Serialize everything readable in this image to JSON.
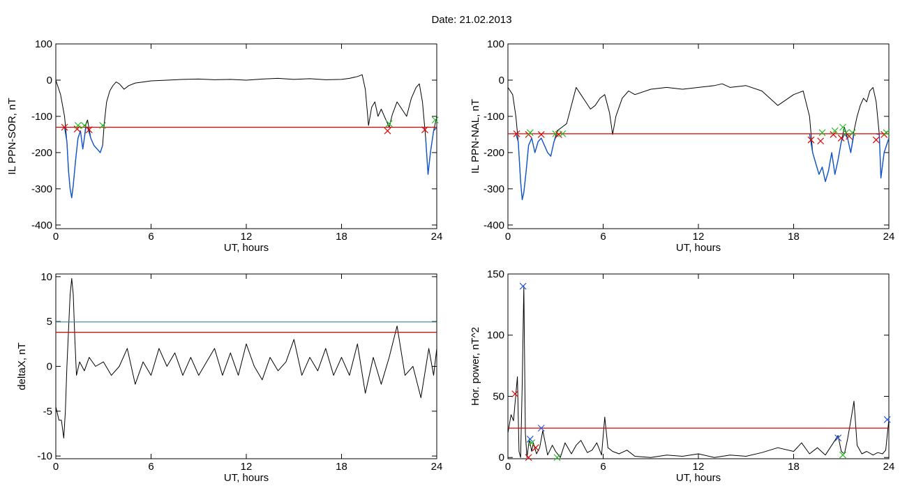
{
  "figure": {
    "title": "Date:  21.02.2013",
    "xlabel": "UT, hours",
    "x_ticks": [
      0,
      6,
      12,
      18,
      24
    ]
  },
  "colors": {
    "signal": "#000000",
    "blue_segments": "#1155cc",
    "threshold_red": "#dd0000",
    "threshold_teal": "#2a8a9a",
    "marker_red": "#dd0000",
    "marker_green": "#22bb22",
    "marker_blue": "#2255dd"
  },
  "chart_data": [
    {
      "id": "ppn-sor",
      "type": "line",
      "ylabel": "IL PPN-SOR, nT",
      "xlabel": "UT, hours",
      "xlim": [
        0,
        24
      ],
      "ylim": [
        -410,
        100
      ],
      "y_ticks": [
        100,
        0,
        -100,
        -200,
        -300,
        -400
      ],
      "y_tick_labels": [
        "100",
        "0",
        "-100",
        "-200",
        "-300",
        "-400"
      ],
      "thresholds": [
        {
          "y": -130,
          "color": "#dd0000"
        }
      ],
      "series": [
        {
          "color": "#000000",
          "x": [
            0,
            0.3,
            0.55,
            0.7,
            0.8,
            0.9,
            1.0,
            1.1,
            1.25,
            1.4,
            1.55,
            1.7,
            1.8,
            1.9,
            2.0,
            2.2,
            2.4,
            2.6,
            2.8,
            2.95,
            3.05,
            3.2,
            3.4,
            3.6,
            3.8,
            4.0,
            4.3,
            4.6,
            5.0,
            5.5,
            6.0,
            7,
            8,
            9,
            10,
            11,
            12,
            13,
            14,
            15,
            16,
            17,
            18,
            18.5,
            19.0,
            19.3,
            19.5,
            19.7,
            19.9,
            20.1,
            20.3,
            20.5,
            20.8,
            21.0,
            21.2,
            21.5,
            21.8,
            22.1,
            22.4,
            22.7,
            22.9,
            23.1,
            23.3,
            23.45,
            23.6,
            23.8,
            24
          ],
          "y": [
            0,
            -40,
            -100,
            -170,
            -250,
            -300,
            -325,
            -290,
            -220,
            -160,
            -140,
            -190,
            -160,
            -120,
            -110,
            -160,
            -180,
            -190,
            -200,
            -180,
            -120,
            -60,
            -30,
            -15,
            -5,
            -10,
            -25,
            -15,
            -8,
            -5,
            -2,
            0,
            2,
            3,
            1,
            2,
            0,
            3,
            5,
            2,
            4,
            1,
            2,
            5,
            10,
            15,
            -25,
            -125,
            -75,
            -60,
            -100,
            -80,
            -110,
            -130,
            -95,
            -60,
            -80,
            -100,
            -50,
            -20,
            -10,
            -60,
            -160,
            -260,
            -200,
            -140,
            -100
          ]
        },
        {
          "color": "#1155cc",
          "x": [
            0.55,
            0.7,
            0.8,
            0.9,
            1.0,
            1.1,
            1.25,
            1.4,
            1.55,
            1.7,
            1.8,
            1.9,
            2.0,
            2.2,
            2.4,
            2.6,
            2.8,
            2.95
          ],
          "y": [
            -130,
            -170,
            -250,
            -300,
            -325,
            -290,
            -220,
            -160,
            -140,
            -190,
            -160,
            -130,
            -130,
            -160,
            -180,
            -190,
            -200,
            -180
          ]
        },
        {
          "color": "#1155cc",
          "x": [
            23.3,
            23.45,
            23.6,
            23.8,
            24
          ],
          "y": [
            -160,
            -260,
            -200,
            -140,
            -130
          ]
        }
      ],
      "markers": [
        {
          "x": 0.55,
          "y": -130,
          "symbol": "x",
          "color": "#dd0000"
        },
        {
          "x": 1.35,
          "y": -135,
          "symbol": "x",
          "color": "#dd0000"
        },
        {
          "x": 1.4,
          "y": -125,
          "symbol": "x",
          "color": "#22bb22"
        },
        {
          "x": 1.8,
          "y": -125,
          "symbol": "x",
          "color": "#22bb22"
        },
        {
          "x": 2.1,
          "y": -137,
          "symbol": "x",
          "color": "#dd0000"
        },
        {
          "x": 2.95,
          "y": -125,
          "symbol": "x",
          "color": "#22bb22"
        },
        {
          "x": 20.9,
          "y": -140,
          "symbol": "x",
          "color": "#dd0000"
        },
        {
          "x": 21.0,
          "y": -120,
          "symbol": "x",
          "color": "#22bb22"
        },
        {
          "x": 23.25,
          "y": -137,
          "symbol": "x",
          "color": "#dd0000"
        },
        {
          "x": 23.9,
          "y": -110,
          "symbol": "x",
          "color": "#22bb22"
        }
      ]
    },
    {
      "id": "ppn-nal",
      "type": "line",
      "ylabel": "IL PPN-NAL, nT",
      "xlabel": "UT, hours",
      "xlim": [
        0,
        24
      ],
      "ylim": [
        -410,
        100
      ],
      "y_ticks": [
        100,
        0,
        -100,
        -200,
        -300,
        -400
      ],
      "y_tick_labels": [
        "100",
        "0",
        "-100",
        "-200",
        "-300",
        "-400"
      ],
      "thresholds": [
        {
          "y": -148,
          "color": "#dd0000"
        }
      ],
      "series": [
        {
          "color": "#000000",
          "x": [
            0,
            0.3,
            0.5,
            0.65,
            0.8,
            0.9,
            1.0,
            1.15,
            1.3,
            1.5,
            1.7,
            1.9,
            2.1,
            2.3,
            2.5,
            2.7,
            2.9,
            3.1,
            3.4,
            3.7,
            4.0,
            4.3,
            4.6,
            4.9,
            5.2,
            5.5,
            5.8,
            6.1,
            6.4,
            6.6,
            6.8,
            7.2,
            7.6,
            8,
            9,
            10,
            11,
            12,
            13,
            13.5,
            14,
            15,
            16,
            17,
            18,
            18.6,
            19.0,
            19.2,
            19.4,
            19.6,
            19.8,
            20.0,
            20.2,
            20.4,
            20.6,
            20.8,
            21.0,
            21.2,
            21.4,
            21.6,
            21.8,
            22.0,
            22.2,
            22.4,
            22.6,
            22.8,
            23.0,
            23.2,
            23.4,
            23.5,
            23.7,
            24
          ],
          "y": [
            -20,
            -40,
            -100,
            -170,
            -280,
            -330,
            -310,
            -250,
            -180,
            -160,
            -200,
            -170,
            -160,
            -180,
            -200,
            -210,
            -170,
            -140,
            -130,
            -120,
            -70,
            -20,
            -40,
            -60,
            -80,
            -70,
            -50,
            -40,
            -90,
            -150,
            -100,
            -50,
            -30,
            -40,
            -25,
            -20,
            -25,
            -20,
            -15,
            -10,
            -20,
            -15,
            -30,
            -70,
            -40,
            -30,
            -100,
            -200,
            -230,
            -260,
            -240,
            -280,
            -250,
            -200,
            -260,
            -220,
            -170,
            -130,
            -160,
            -200,
            -140,
            -100,
            -70,
            -50,
            -60,
            -30,
            -20,
            -60,
            -150,
            -270,
            -200,
            -160
          ]
        },
        {
          "color": "#1155cc",
          "x": [
            0.5,
            0.65,
            0.8,
            0.9,
            1.0,
            1.15,
            1.3,
            1.5,
            1.7,
            1.9,
            2.1,
            2.3,
            2.5,
            2.7,
            2.9,
            3.1
          ],
          "y": [
            -148,
            -170,
            -280,
            -330,
            -310,
            -250,
            -180,
            -160,
            -200,
            -170,
            -160,
            -180,
            -200,
            -210,
            -170,
            -148
          ]
        },
        {
          "color": "#1155cc",
          "x": [
            19.0,
            19.2,
            19.4,
            19.6,
            19.8,
            20.0,
            20.2,
            20.4,
            20.6,
            20.8,
            21.0,
            21.2,
            21.4,
            21.6,
            21.8
          ],
          "y": [
            -148,
            -200,
            -230,
            -260,
            -240,
            -280,
            -250,
            -200,
            -260,
            -220,
            -170,
            -148,
            -160,
            -200,
            -148
          ]
        },
        {
          "color": "#1155cc",
          "x": [
            23.2,
            23.4,
            23.5,
            23.7,
            24
          ],
          "y": [
            -148,
            -150,
            -270,
            -200,
            -160
          ]
        }
      ],
      "markers": [
        {
          "x": 0.55,
          "y": -148,
          "symbol": "x",
          "color": "#dd0000"
        },
        {
          "x": 1.3,
          "y": -150,
          "symbol": "x",
          "color": "#dd0000"
        },
        {
          "x": 1.4,
          "y": -145,
          "symbol": "x",
          "color": "#22bb22"
        },
        {
          "x": 2.1,
          "y": -150,
          "symbol": "x",
          "color": "#dd0000"
        },
        {
          "x": 3.0,
          "y": -148,
          "symbol": "x",
          "color": "#22bb22"
        },
        {
          "x": 3.2,
          "y": -150,
          "symbol": "x",
          "color": "#dd0000"
        },
        {
          "x": 3.45,
          "y": -148,
          "symbol": "x",
          "color": "#22bb22"
        },
        {
          "x": 19.1,
          "y": -165,
          "symbol": "x",
          "color": "#dd0000"
        },
        {
          "x": 19.7,
          "y": -168,
          "symbol": "x",
          "color": "#dd0000"
        },
        {
          "x": 19.8,
          "y": -145,
          "symbol": "x",
          "color": "#22bb22"
        },
        {
          "x": 20.5,
          "y": -150,
          "symbol": "x",
          "color": "#dd0000"
        },
        {
          "x": 20.6,
          "y": -140,
          "symbol": "x",
          "color": "#22bb22"
        },
        {
          "x": 21.0,
          "y": -160,
          "symbol": "x",
          "color": "#dd0000"
        },
        {
          "x": 21.1,
          "y": -130,
          "symbol": "x",
          "color": "#22bb22"
        },
        {
          "x": 21.3,
          "y": -145,
          "symbol": "x",
          "color": "#22bb22"
        },
        {
          "x": 21.5,
          "y": -155,
          "symbol": "x",
          "color": "#dd0000"
        },
        {
          "x": 21.7,
          "y": -145,
          "symbol": "x",
          "color": "#22bb22"
        },
        {
          "x": 23.2,
          "y": -165,
          "symbol": "x",
          "color": "#dd0000"
        },
        {
          "x": 23.7,
          "y": -150,
          "symbol": "x",
          "color": "#dd0000"
        },
        {
          "x": 23.85,
          "y": -145,
          "symbol": "x",
          "color": "#22bb22"
        }
      ]
    },
    {
      "id": "deltax",
      "type": "line",
      "ylabel": "deltaX, nT",
      "xlabel": "UT, hours",
      "xlim": [
        0,
        24
      ],
      "ylim": [
        -10.3,
        10.3
      ],
      "y_ticks": [
        10,
        5,
        0,
        -5,
        -10
      ],
      "y_tick_labels": [
        "10",
        "5",
        "0",
        "-5",
        "-10"
      ],
      "thresholds": [
        {
          "y": 4.95,
          "color": "#2a8a9a"
        },
        {
          "y": 3.8,
          "color": "#dd0000"
        }
      ],
      "series": [
        {
          "color": "#000000",
          "x": [
            0,
            0.2,
            0.35,
            0.5,
            0.6,
            0.7,
            0.8,
            0.9,
            1.0,
            1.1,
            1.2,
            1.3,
            1.5,
            1.8,
            2.1,
            2.5,
            3.0,
            3.5,
            4.0,
            4.5,
            5.0,
            5.5,
            6.0,
            6.5,
            7.0,
            7.5,
            8.0,
            8.5,
            9.0,
            9.5,
            10.0,
            10.5,
            11.0,
            11.5,
            12.0,
            12.5,
            13.0,
            13.5,
            14.0,
            14.5,
            15.0,
            15.5,
            16.0,
            16.5,
            17.0,
            17.5,
            18.0,
            18.5,
            19.0,
            19.5,
            20.0,
            20.5,
            21.0,
            21.5,
            22.0,
            22.5,
            23.0,
            23.5,
            23.8,
            24
          ],
          "y": [
            -4.5,
            -6,
            -6,
            -8,
            -5,
            0,
            4,
            8,
            9.8,
            8,
            3,
            -1,
            0.5,
            -0.5,
            1,
            0,
            0.5,
            -1,
            0,
            2,
            -2,
            0.5,
            -1,
            2,
            0,
            1.5,
            -1,
            1,
            -1,
            0.5,
            2,
            -1,
            1.5,
            -1,
            2.5,
            0,
            -1.5,
            1,
            -0.5,
            0.5,
            3,
            -1,
            1,
            -0.5,
            2,
            -1,
            1,
            -1,
            2.5,
            -3,
            1,
            -2,
            1,
            4.5,
            -1,
            0,
            -3.5,
            2,
            -1,
            2
          ]
        }
      ],
      "markers": []
    },
    {
      "id": "hor-power",
      "type": "line",
      "ylabel": "Hor. power, nT^2",
      "xlabel": "UT, hours",
      "xlim": [
        0,
        24
      ],
      "ylim": [
        -1,
        150
      ],
      "y_ticks": [
        150,
        100,
        50,
        0
      ],
      "y_tick_labels": [
        "150",
        "100",
        "50",
        "0"
      ],
      "thresholds": [
        {
          "y": 24,
          "color": "#dd0000"
        }
      ],
      "series": [
        {
          "color": "#000000",
          "x": [
            0,
            0.2,
            0.35,
            0.5,
            0.6,
            0.7,
            0.8,
            0.9,
            1.0,
            1.1,
            1.2,
            1.35,
            1.5,
            1.6,
            1.8,
            2.0,
            2.2,
            2.5,
            2.8,
            3.0,
            3.3,
            3.6,
            4.0,
            4.3,
            4.6,
            5.0,
            5.3,
            5.6,
            5.9,
            6.1,
            6.3,
            6.6,
            7.0,
            7.5,
            8.0,
            9,
            10,
            11,
            12,
            13,
            14,
            15,
            16,
            17,
            18,
            18.5,
            19.0,
            19.5,
            20.0,
            20.5,
            20.8,
            21.0,
            21.2,
            21.4,
            21.6,
            21.8,
            22.0,
            22.3,
            22.6,
            23.0,
            23.3,
            23.6,
            23.8,
            24
          ],
          "y": [
            20,
            35,
            30,
            52,
            66,
            5,
            0,
            60,
            140,
            20,
            0,
            15,
            5,
            12,
            3,
            8,
            22,
            2,
            10,
            5,
            0,
            12,
            3,
            10,
            14,
            4,
            6,
            12,
            2,
            33,
            8,
            5,
            3,
            6,
            1,
            0,
            2,
            1,
            3,
            0,
            2,
            1,
            4,
            8,
            5,
            12,
            3,
            8,
            2,
            12,
            18,
            5,
            3,
            15,
            30,
            46,
            10,
            3,
            5,
            2,
            4,
            3,
            6,
            31
          ]
        }
      ],
      "markers": [
        {
          "x": 0.45,
          "y": 52,
          "symbol": "x",
          "color": "#dd0000"
        },
        {
          "x": 0.95,
          "y": 140,
          "symbol": "x",
          "color": "#2255dd"
        },
        {
          "x": 1.3,
          "y": 0,
          "symbol": "x",
          "color": "#dd0000"
        },
        {
          "x": 1.4,
          "y": 15,
          "symbol": "x",
          "color": "#2255dd"
        },
        {
          "x": 1.5,
          "y": 12,
          "symbol": "x",
          "color": "#22bb22"
        },
        {
          "x": 1.75,
          "y": 8,
          "symbol": "x",
          "color": "#dd0000"
        },
        {
          "x": 2.1,
          "y": 24,
          "symbol": "x",
          "color": "#2255dd"
        },
        {
          "x": 3.1,
          "y": 0,
          "symbol": "x",
          "color": "#22bb22"
        },
        {
          "x": 20.8,
          "y": 16,
          "symbol": "x",
          "color": "#2255dd"
        },
        {
          "x": 21.1,
          "y": 2,
          "symbol": "x",
          "color": "#22bb22"
        },
        {
          "x": 23.9,
          "y": 31,
          "symbol": "x",
          "color": "#2255dd"
        }
      ]
    }
  ]
}
